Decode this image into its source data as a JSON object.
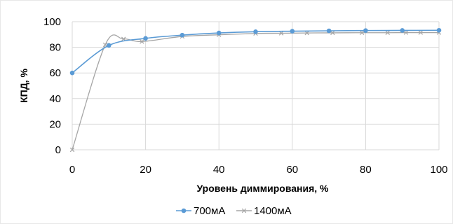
{
  "chart_data": {
    "type": "line",
    "title": "",
    "xlabel": "Уровень диммирования, %",
    "ylabel": "КПД, %",
    "xlim": [
      0,
      100
    ],
    "ylim": [
      0,
      100
    ],
    "xticks": [
      0,
      20,
      40,
      60,
      80,
      100
    ],
    "yticks": [
      0,
      20,
      40,
      60,
      80,
      100
    ],
    "grid": true,
    "legend_position": "bottom",
    "smooth": true,
    "series": [
      {
        "name": "700мА",
        "color": "#5b9bd5",
        "marker": "circle",
        "x": [
          0,
          10,
          20,
          30,
          40,
          50,
          60,
          70,
          80,
          90,
          100
        ],
        "y": [
          60,
          81.5,
          87,
          89.5,
          91.2,
          92.2,
          92.6,
          92.9,
          93.1,
          93.2,
          93.3
        ]
      },
      {
        "name": "1400мА",
        "color": "#a5a5a5",
        "marker": "x",
        "x": [
          0,
          9,
          14,
          19,
          30,
          40,
          50,
          57,
          64,
          71,
          79,
          86,
          91,
          95,
          100
        ],
        "y": [
          0,
          82,
          86.5,
          84.5,
          88.5,
          89.8,
          90.8,
          91,
          91.2,
          91.3,
          91.4,
          91.4,
          91.5,
          91.5,
          91.5
        ]
      }
    ]
  }
}
